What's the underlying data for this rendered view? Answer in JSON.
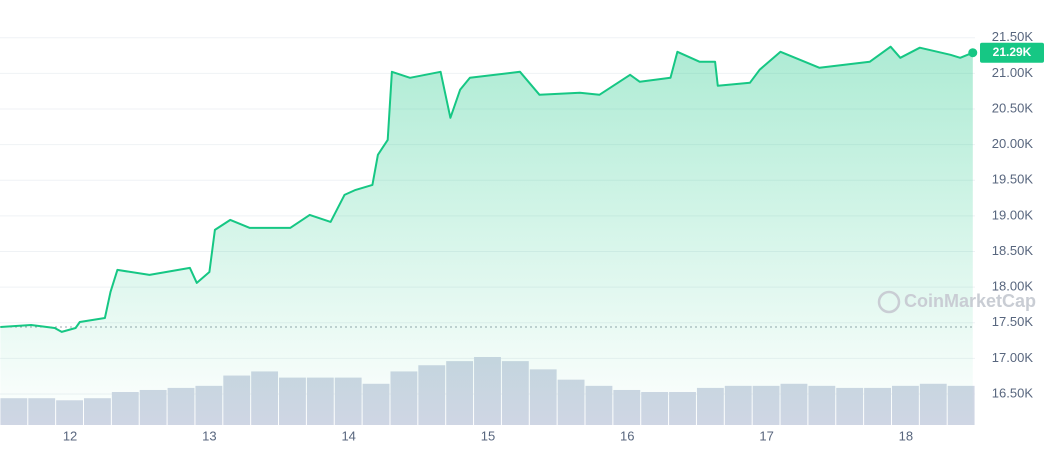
{
  "chart_data": {
    "type": "line",
    "x": [
      11.5,
      11.72,
      11.89,
      11.94,
      12.04,
      12.07,
      12.25,
      12.29,
      12.34,
      12.57,
      12.86,
      12.91,
      13.0,
      13.04,
      13.15,
      13.29,
      13.58,
      13.72,
      13.87,
      13.97,
      14.05,
      14.17,
      14.21,
      14.28,
      14.31,
      14.44,
      14.66,
      14.73,
      14.8,
      14.87,
      15.23,
      15.37,
      15.66,
      15.8,
      16.02,
      16.09,
      16.31,
      16.36,
      16.52,
      16.63,
      16.65,
      16.88,
      16.95,
      17.1,
      17.24,
      17.38,
      17.74,
      17.89,
      17.96,
      18.1,
      18.32,
      18.39,
      18.48
    ],
    "series": [
      {
        "color": "#16c784",
        "values": [
          17441,
          17469,
          17427,
          17371,
          17427,
          17511,
          17567,
          17933,
          18242,
          18171,
          18270,
          18059,
          18213,
          18803,
          18944,
          18831,
          18831,
          19014,
          18916,
          19295,
          19365,
          19435,
          19857,
          20067,
          21022,
          20938,
          21022,
          20376,
          20770,
          20938,
          21022,
          20699,
          20728,
          20699,
          20980,
          20882,
          20938,
          21303,
          21163,
          21163,
          20826,
          20868,
          21051,
          21303,
          21191,
          21079,
          21163,
          21374,
          21219,
          21360,
          21261,
          21219,
          21290
        ]
      }
    ],
    "baseline": 17441,
    "current": {
      "value": 21290,
      "label": "21.29K"
    },
    "volume": {
      "color": "#cfd6e4",
      "x": [
        11.5,
        11.7,
        11.9,
        12.1,
        12.3,
        12.5,
        12.7,
        12.9,
        13.1,
        13.3,
        13.5,
        13.7,
        13.9,
        14.1,
        14.3,
        14.5,
        14.7,
        14.9,
        15.1,
        15.3,
        15.5,
        15.7,
        15.9,
        16.1,
        16.3,
        16.5,
        16.7,
        16.9,
        17.1,
        17.3,
        17.5,
        17.7,
        17.9,
        18.1,
        18.3
      ],
      "values": [
        26,
        26,
        24,
        26,
        32,
        34,
        36,
        38,
        48,
        52,
        46,
        46,
        46,
        40,
        52,
        58,
        62,
        66,
        62,
        54,
        44,
        38,
        34,
        32,
        32,
        36,
        38,
        38,
        40,
        38,
        36,
        36,
        38,
        40,
        38
      ]
    },
    "xlim": [
      11.497,
      18.496
    ],
    "xticks": [
      12,
      13,
      14,
      15,
      16,
      17,
      18
    ],
    "ylim": [
      16065,
      22030
    ],
    "yticks": [
      {
        "value": 16500,
        "label": "16.50K"
      },
      {
        "value": 17000,
        "label": "17.00K"
      },
      {
        "value": 17500,
        "label": "17.50K"
      },
      {
        "value": 18000,
        "label": "18.00K"
      },
      {
        "value": 18500,
        "label": "18.50K"
      },
      {
        "value": 19000,
        "label": "19.00K"
      },
      {
        "value": 19500,
        "label": "19.50K"
      },
      {
        "value": 20000,
        "label": "20.00K"
      },
      {
        "value": 20500,
        "label": "20.50K"
      },
      {
        "value": 21000,
        "label": "21.00K"
      },
      {
        "value": 21500,
        "label": "21.50K"
      }
    ],
    "grid": true,
    "watermark": "CoinMarketCap"
  }
}
